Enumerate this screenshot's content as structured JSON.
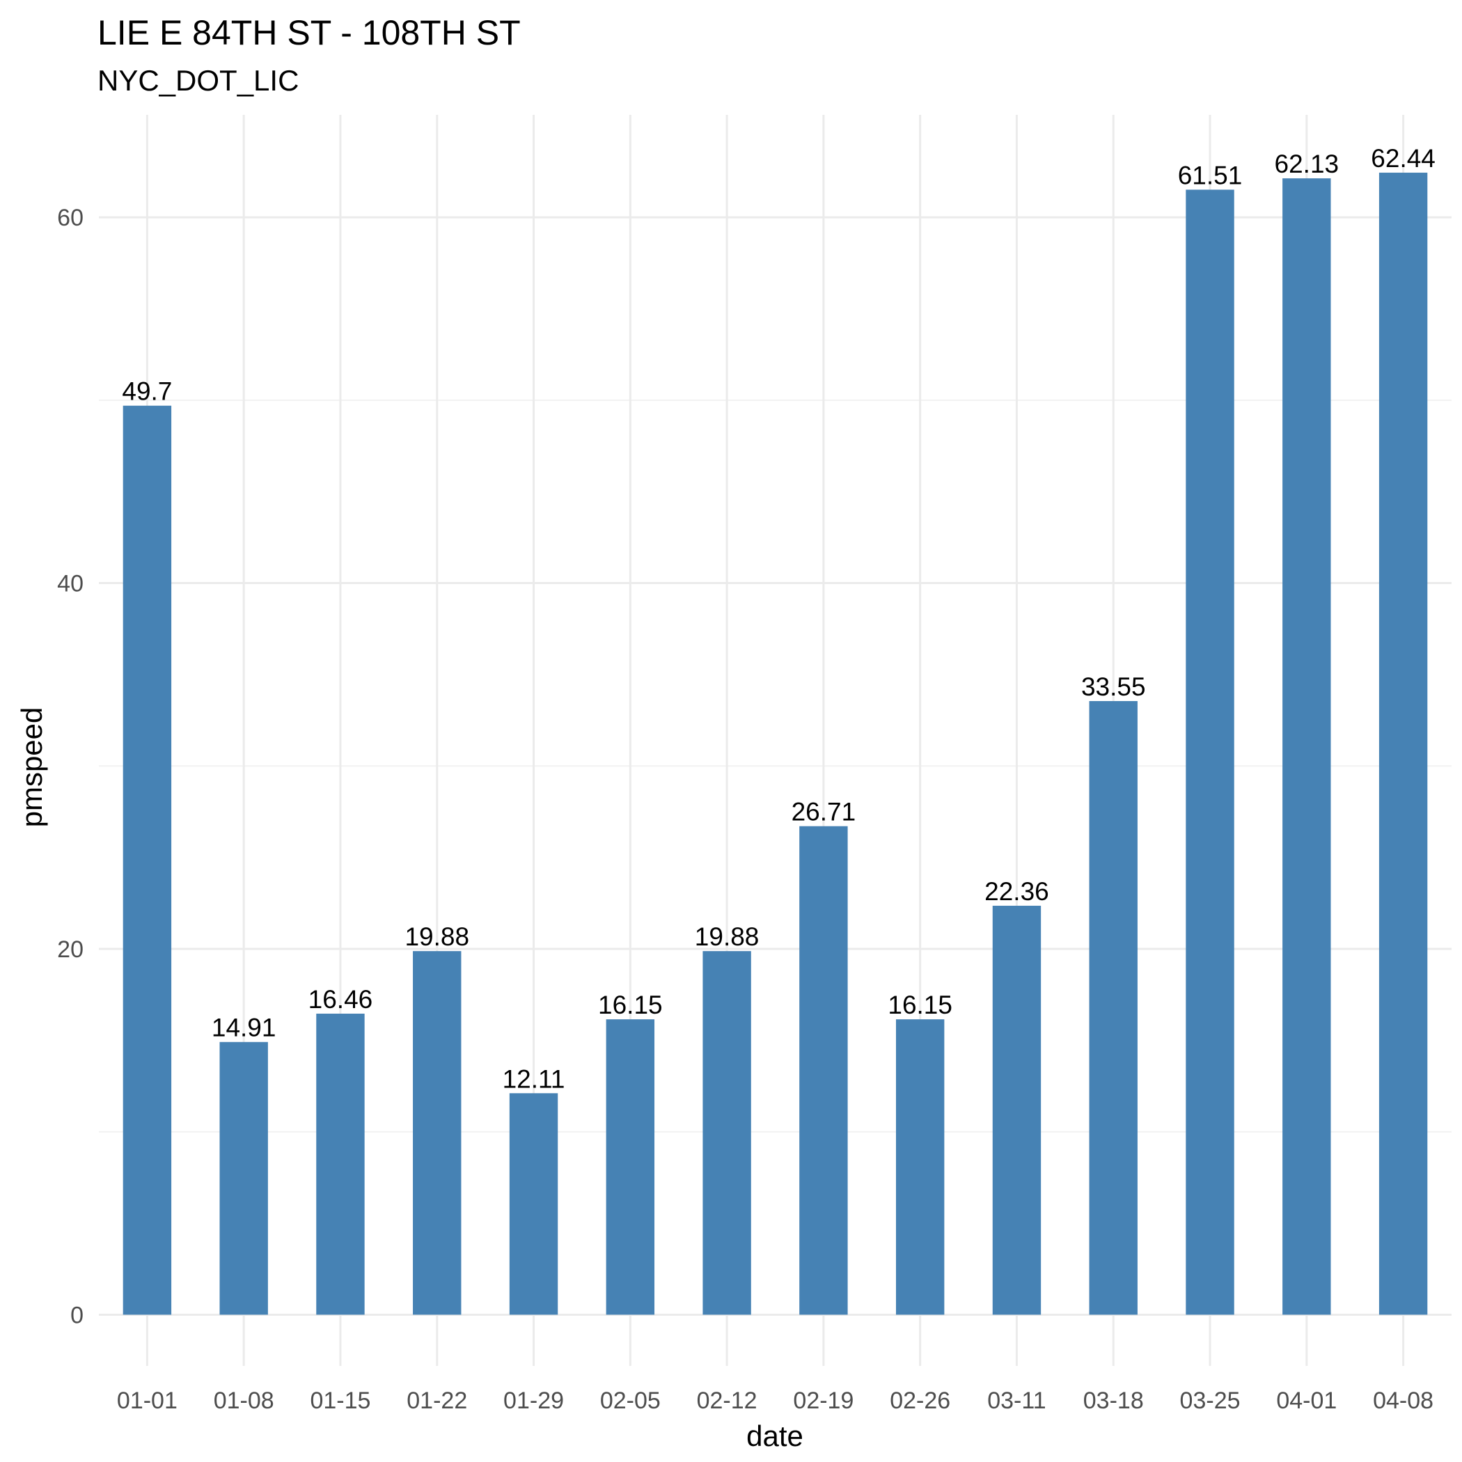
{
  "chart_data": {
    "type": "bar",
    "title": "LIE E 84TH ST - 108TH ST",
    "subtitle": "NYC_DOT_LIC",
    "xlabel": "date",
    "ylabel": "pmspeed",
    "categories": [
      "01-01",
      "01-08",
      "01-15",
      "01-22",
      "01-29",
      "02-05",
      "02-12",
      "02-19",
      "02-26",
      "03-11",
      "03-18",
      "03-25",
      "04-01",
      "04-08"
    ],
    "values": [
      49.7,
      14.91,
      16.46,
      19.88,
      12.11,
      16.15,
      19.88,
      26.71,
      16.15,
      22.36,
      33.55,
      61.51,
      62.13,
      62.44
    ],
    "value_labels": [
      "49.7",
      "14.91",
      "16.46",
      "19.88",
      "12.11",
      "16.15",
      "19.88",
      "26.71",
      "16.15",
      "22.36",
      "33.55",
      "61.51",
      "62.13",
      "62.44"
    ],
    "yticks": [
      0,
      20,
      40,
      60
    ],
    "ylim": [
      -2.8,
      65.6
    ],
    "bar_color": "#4682B4",
    "grid": true,
    "legend": "none"
  }
}
